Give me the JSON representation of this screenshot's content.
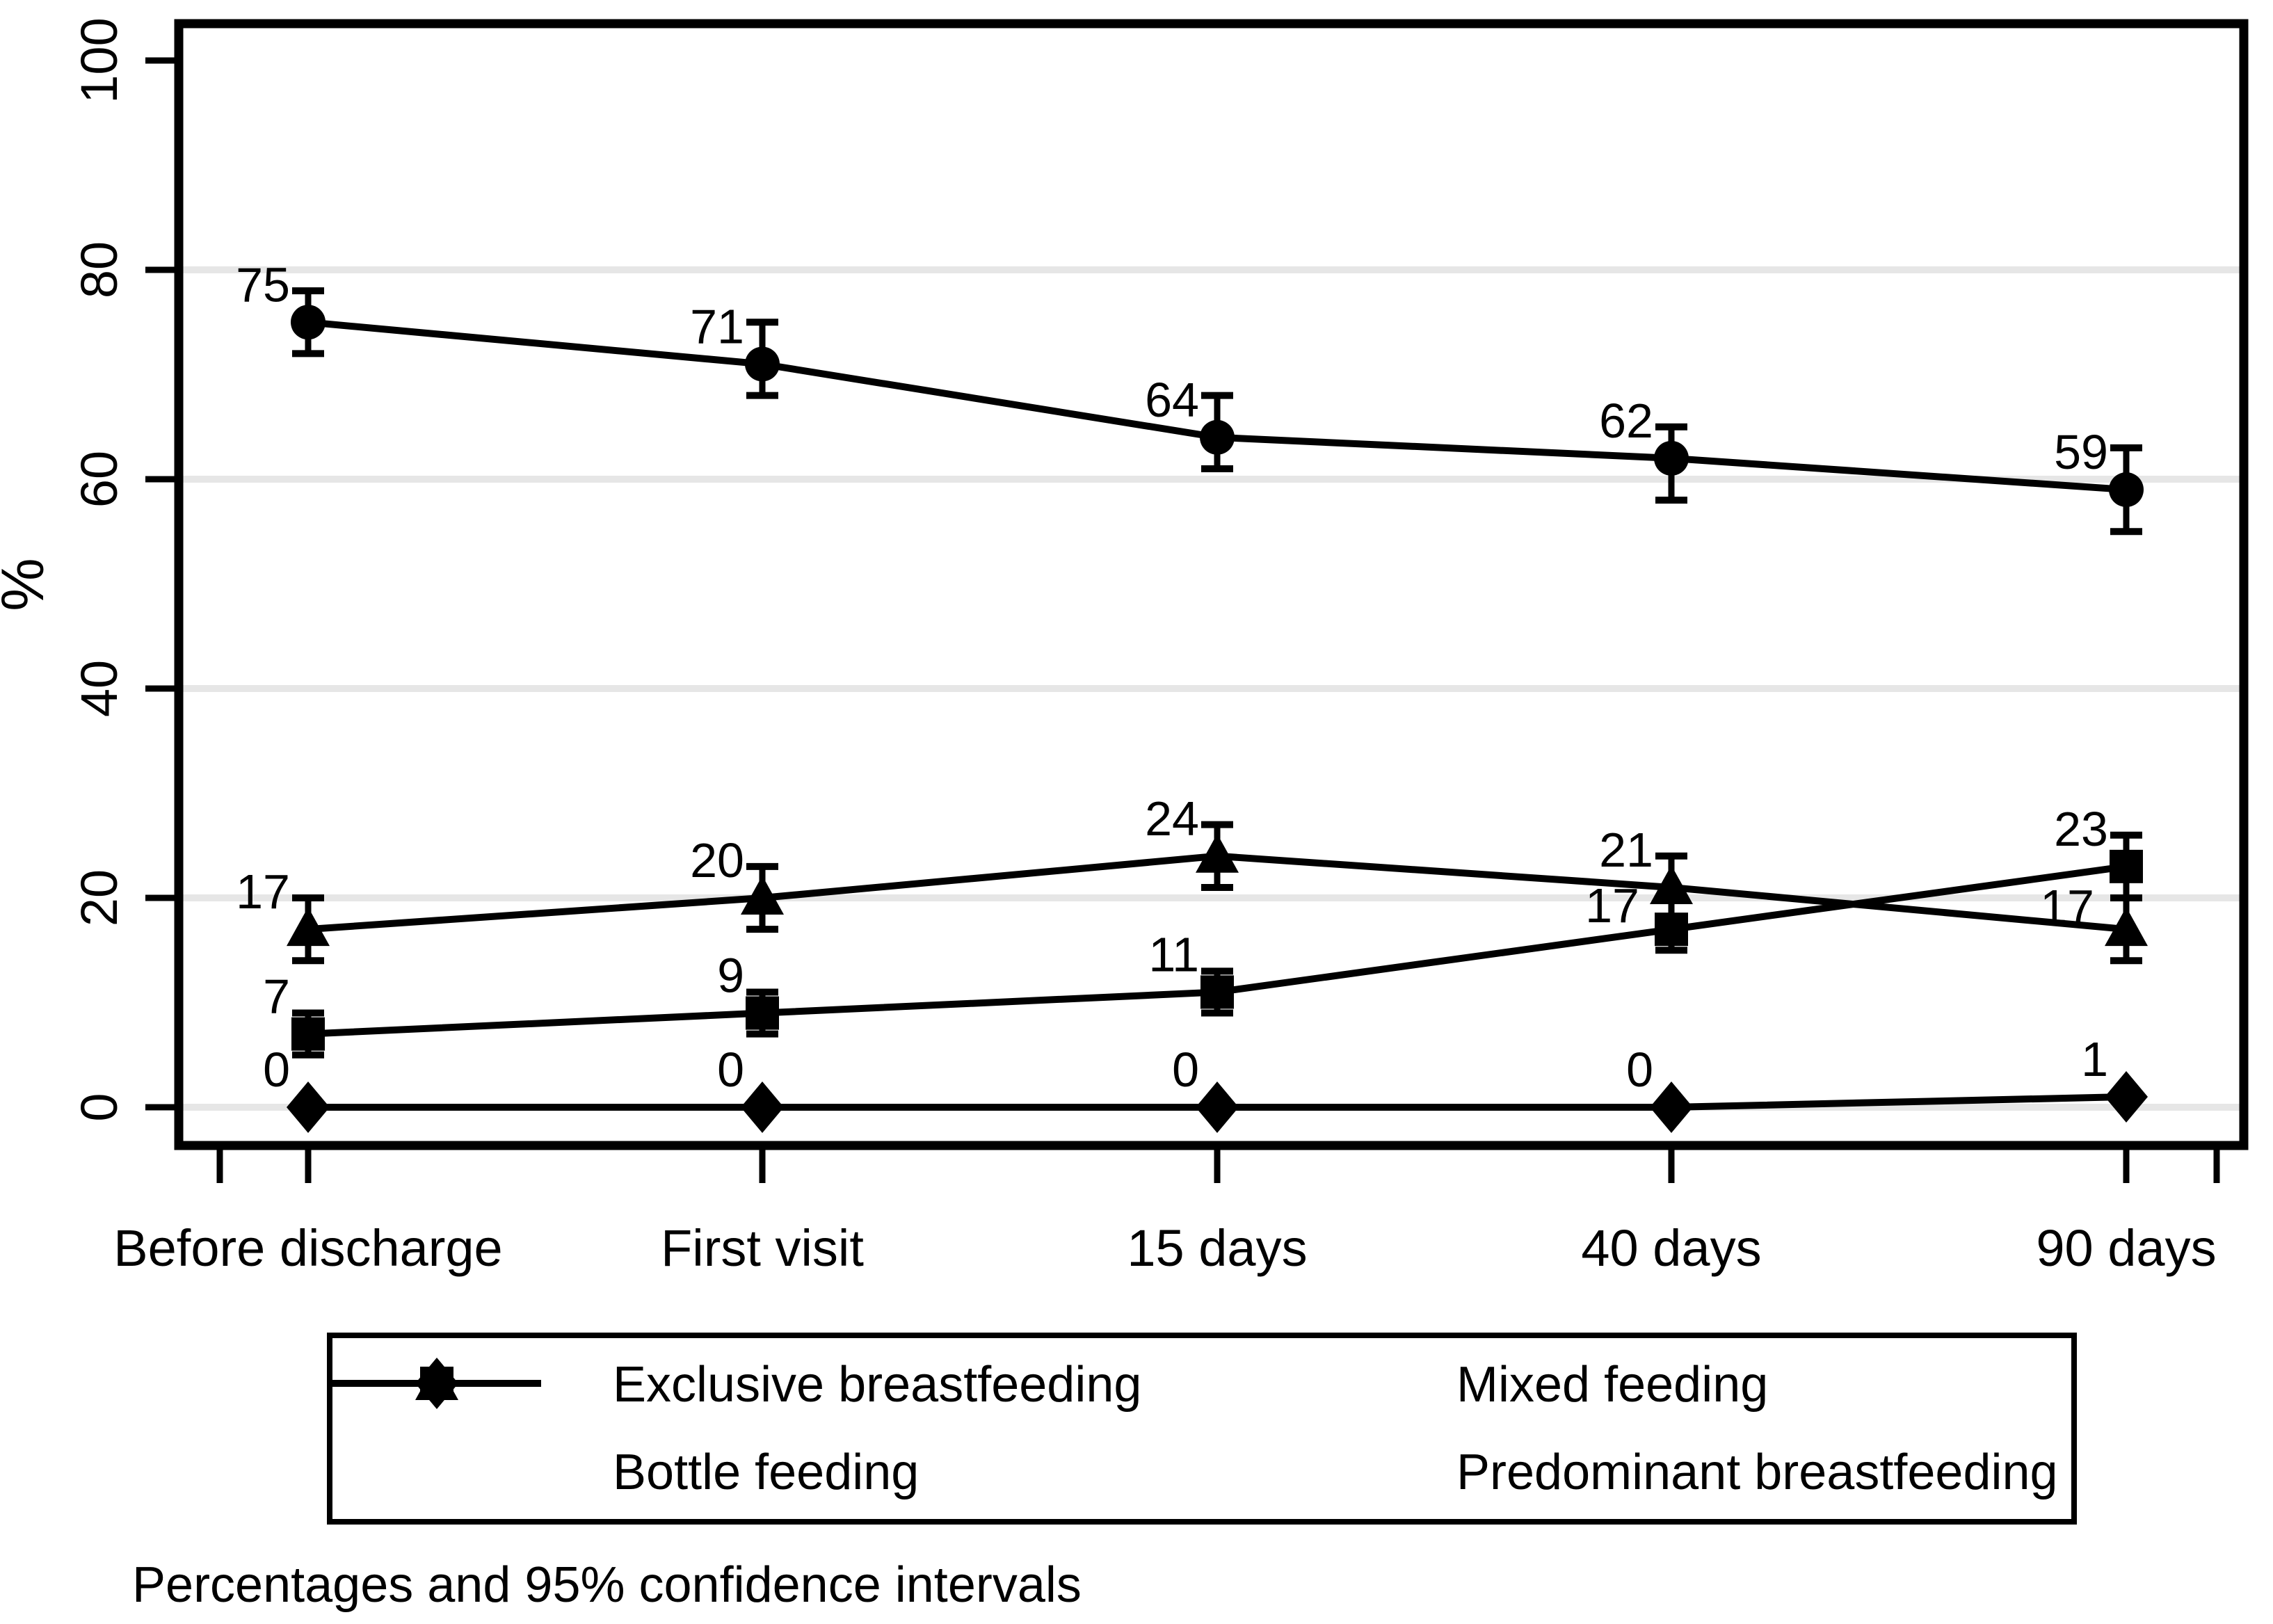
{
  "chart_data": {
    "type": "line",
    "title": "",
    "xlabel": "",
    "ylabel": "%",
    "categories": [
      "Before discharge",
      "First visit",
      "15 days",
      "40 days",
      "90 days"
    ],
    "ylim": [
      0,
      100
    ],
    "yticks": [
      0,
      20,
      40,
      60,
      80,
      100
    ],
    "grid_yvalues": [
      0,
      20,
      40,
      60,
      80
    ],
    "grid_on": true,
    "legend_position": "bottom",
    "series": [
      {
        "name": "Exclusive breastfeeding",
        "marker": "circle",
        "values": [
          75,
          71,
          64,
          62,
          59
        ],
        "ci_low": [
          72,
          68,
          61,
          58,
          55
        ],
        "ci_high": [
          78,
          75,
          68,
          65,
          63
        ],
        "point_labels": [
          "75",
          "71",
          "64",
          "62",
          "59"
        ]
      },
      {
        "name": "Mixed feeding",
        "marker": "triangle",
        "values": [
          17,
          20,
          24,
          21,
          17
        ],
        "ci_low": [
          14,
          17,
          21,
          18,
          14
        ],
        "ci_high": [
          20,
          23,
          27,
          24,
          20
        ],
        "point_labels": [
          "17",
          "20",
          "24",
          "21",
          "17"
        ]
      },
      {
        "name": "Bottle feeding",
        "marker": "square",
        "values": [
          7,
          9,
          11,
          17,
          23
        ],
        "ci_low": [
          5,
          7,
          9,
          15,
          20
        ],
        "ci_high": [
          9,
          11,
          13,
          20,
          26
        ],
        "point_labels": [
          "7",
          "9",
          "11",
          "17",
          "23"
        ]
      },
      {
        "name": "Predominant breastfeeding",
        "marker": "diamond",
        "values": [
          0,
          0,
          0,
          0,
          1
        ],
        "ci_low": [
          0,
          0,
          0,
          0,
          1
        ],
        "ci_high": [
          0,
          0,
          0,
          0,
          1
        ],
        "point_labels": [
          "0",
          "0",
          "0",
          "0",
          "1"
        ]
      }
    ],
    "annotation": "Percentages and 95% confidence intervals"
  },
  "colors": {
    "foreground": "#000000",
    "grid": "#e6e6e6",
    "background": "#ffffff"
  },
  "legend": {
    "items": [
      {
        "label": "Exclusive breastfeeding",
        "marker": "circle"
      },
      {
        "label": "Mixed feeding",
        "marker": "triangle"
      },
      {
        "label": "Bottle feeding",
        "marker": "square"
      },
      {
        "label": "Predominant breastfeeding",
        "marker": "diamond"
      }
    ]
  },
  "caption": {
    "text": "Percentages and 95% confidence intervals"
  }
}
